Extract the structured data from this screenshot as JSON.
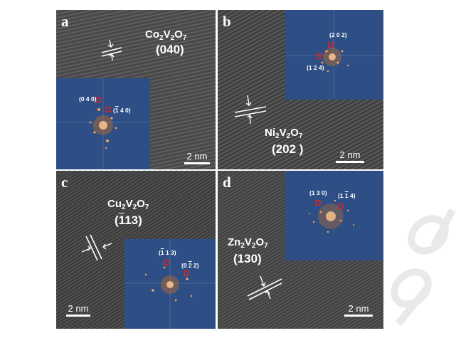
{
  "panels": {
    "a": {
      "letter": "a",
      "formula": {
        "el1": "Co",
        "n1": "2",
        "el2": "V",
        "n2": "2",
        "el3": "O",
        "n3": "7"
      },
      "plane": "(040)",
      "fft_labels": [
        "(0 4 0)",
        "(1 4 0)"
      ],
      "fft_label_2_bar": "1",
      "fft_label_2_rest": " 4 0)",
      "scale": "2 nm"
    },
    "b": {
      "letter": "b",
      "formula": {
        "el1": "Ni",
        "n1": "2",
        "el2": "V",
        "n2": "2",
        "el3": "O",
        "n3": "7"
      },
      "plane": "(202 )",
      "fft_labels": [
        "(2 0 2)",
        "(1 2 4)"
      ],
      "scale": "2 nm"
    },
    "c": {
      "letter": "c",
      "formula": {
        "el1": "Cu",
        "n1": "2",
        "el2": "V",
        "n2": "2",
        "el3": "O",
        "n3": "7"
      },
      "plane_bar": "1",
      "plane_rest": "13)",
      "fft_label_1_bar": "1",
      "fft_label_1_rest": " 1 3)",
      "fft_label_2_pre": "(0 ",
      "fft_label_2_bar": "2",
      "fft_label_2_rest": " 2)",
      "scale": "2 nm"
    },
    "d": {
      "letter": "d",
      "formula": {
        "el1": "Zn",
        "n1": "2",
        "el2": "V",
        "n2": "2",
        "el3": "O",
        "n3": "7"
      },
      "plane": "(130)",
      "fft_labels": [
        "(1 3 0)"
      ],
      "fft_label_2_pre": "(1 ",
      "fft_label_2_bar": "1",
      "fft_label_2_rest": " 4)",
      "scale": "2 nm"
    }
  },
  "colors": {
    "inset_blue": "#2e4f86",
    "marker_red": "#e0201e",
    "spot_orange": "#f2a35a",
    "watermark": "#e9e9e9"
  }
}
